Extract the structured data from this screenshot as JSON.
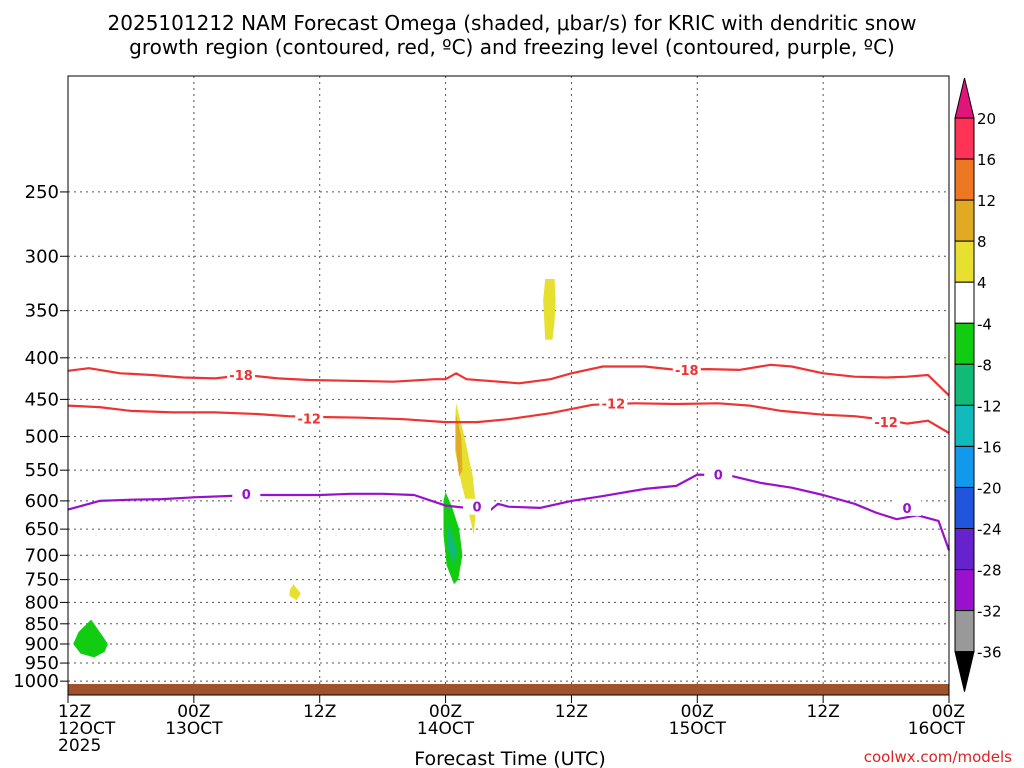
{
  "chart_data": {
    "type": "heatmap",
    "title_lines": [
      "2025101212 NAM Forecast Omega (shaded, μbar/s) for KRIC with dendritic snow",
      "growth region (contoured, red, ºC) and freezing level (contoured, purple, ºC)"
    ],
    "xlabel": "Forecast Time (UTC)",
    "ylabel": "",
    "credit": "coolwx.com/models",
    "y_scale": "log",
    "ylim": [
      1040,
      180
    ],
    "y_ticks": [
      250,
      300,
      350,
      400,
      450,
      500,
      550,
      600,
      650,
      700,
      750,
      800,
      850,
      900,
      950,
      1000
    ],
    "x_range_hours": [
      0,
      84
    ],
    "x_ticks": [
      {
        "h": 0,
        "line1": "12Z",
        "line2": "12OCT",
        "line3": "2025"
      },
      {
        "h": 12,
        "line1": "00Z",
        "line2": "13OCT",
        "line3": ""
      },
      {
        "h": 24,
        "line1": "12Z",
        "line2": "",
        "line3": ""
      },
      {
        "h": 36,
        "line1": "00Z",
        "line2": "14OCT",
        "line3": ""
      },
      {
        "h": 48,
        "line1": "12Z",
        "line2": "",
        "line3": ""
      },
      {
        "h": 60,
        "line1": "00Z",
        "line2": "15OCT",
        "line3": ""
      },
      {
        "h": 72,
        "line1": "12Z",
        "line2": "",
        "line3": ""
      },
      {
        "h": 84,
        "line1": "00Z",
        "line2": "16OCT",
        "line3": ""
      }
    ],
    "colorbar": {
      "labels": [
        "20",
        "16",
        "12",
        "8",
        "4",
        "-4",
        "-8",
        "-12",
        "-16",
        "-20",
        "-24",
        "-28",
        "-32",
        "-36"
      ],
      "colors": [
        "#ff3355",
        "#ee7722",
        "#e0aa22",
        "#e8e030",
        "#ffffff",
        "#11cc11",
        "#11bb77",
        "#11bbbb",
        "#1199ee",
        "#2255dd",
        "#6622cc",
        "#9911cc",
        "#999999"
      ],
      "top_arrow_color": "#e0157a",
      "bottom_arrow_color": "#000000"
    },
    "ground_color": "#a0522d",
    "contours": [
      {
        "level": "-18",
        "color": "#ee3333",
        "points": [
          [
            0,
            415
          ],
          [
            2,
            412
          ],
          [
            5,
            418
          ],
          [
            8,
            420
          ],
          [
            11,
            423
          ],
          [
            14,
            424
          ],
          [
            17,
            420
          ],
          [
            20,
            424
          ],
          [
            23,
            426
          ],
          [
            27,
            427
          ],
          [
            31,
            428
          ],
          [
            35,
            425
          ],
          [
            36,
            425
          ],
          [
            37,
            418
          ],
          [
            38,
            425
          ],
          [
            40,
            427
          ],
          [
            43,
            430
          ],
          [
            46,
            425
          ],
          [
            48,
            418
          ],
          [
            51,
            410
          ],
          [
            55,
            410
          ],
          [
            58,
            414
          ],
          [
            61,
            413
          ],
          [
            64,
            414
          ],
          [
            66,
            410
          ],
          [
            67,
            408
          ],
          [
            69,
            410
          ],
          [
            72,
            418
          ],
          [
            75,
            422
          ],
          [
            78,
            423
          ],
          [
            80,
            422
          ],
          [
            82,
            420
          ],
          [
            84,
            445
          ]
        ],
        "labels": [
          [
            16.5,
            420
          ]
        ]
      },
      {
        "level": "-18b",
        "color": "#ee3333",
        "points": [],
        "labels": [
          [
            59,
            414
          ]
        ]
      },
      {
        "level": "-12",
        "color": "#ee3333",
        "points": [
          [
            0,
            458
          ],
          [
            3,
            460
          ],
          [
            6,
            465
          ],
          [
            10,
            467
          ],
          [
            14,
            467
          ],
          [
            18,
            469
          ],
          [
            21,
            472
          ],
          [
            24,
            473
          ],
          [
            28,
            474
          ],
          [
            32,
            476
          ],
          [
            36,
            480
          ],
          [
            39,
            480
          ],
          [
            42,
            476
          ],
          [
            46,
            468
          ],
          [
            50,
            457
          ],
          [
            54,
            455
          ],
          [
            58,
            456
          ],
          [
            62,
            455
          ],
          [
            65,
            458
          ],
          [
            68,
            465
          ],
          [
            72,
            470
          ],
          [
            75,
            472
          ],
          [
            78,
            477
          ],
          [
            80,
            482
          ],
          [
            82,
            478
          ],
          [
            84,
            495
          ]
        ],
        "labels": [
          [
            23,
            475
          ],
          [
            52,
            455
          ],
          [
            78,
            480
          ]
        ]
      },
      {
        "level": "0",
        "color": "#9911cc",
        "points": [
          [
            0,
            615
          ],
          [
            3,
            600
          ],
          [
            6,
            598
          ],
          [
            9,
            597
          ],
          [
            12,
            594
          ],
          [
            15,
            592
          ],
          [
            18,
            590
          ],
          [
            21,
            590
          ],
          [
            24,
            590
          ],
          [
            27,
            588
          ],
          [
            30,
            588
          ],
          [
            33,
            590
          ],
          [
            36,
            608
          ],
          [
            38,
            612
          ],
          [
            40,
            620
          ],
          [
            41,
            605
          ],
          [
            42,
            610
          ],
          [
            45,
            612
          ],
          [
            48,
            600
          ],
          [
            51,
            592
          ],
          [
            55,
            580
          ],
          [
            58,
            575
          ],
          [
            60,
            557
          ],
          [
            63,
            558
          ],
          [
            66,
            570
          ],
          [
            69,
            578
          ],
          [
            72,
            590
          ],
          [
            75,
            605
          ],
          [
            77,
            620
          ],
          [
            79,
            632
          ],
          [
            81,
            625
          ],
          [
            83,
            635
          ],
          [
            84,
            690
          ]
        ],
        "labels": [
          [
            17,
            588
          ],
          [
            39,
            610
          ],
          [
            62,
            557
          ],
          [
            80,
            612
          ]
        ]
      }
    ],
    "shaded_regions": [
      {
        "color": "#e8e030",
        "points": [
          [
            45.5,
            320
          ],
          [
            46.4,
            320
          ],
          [
            46.5,
            340
          ],
          [
            46.4,
            360
          ],
          [
            46.2,
            380
          ],
          [
            45.5,
            380
          ],
          [
            45.4,
            360
          ],
          [
            45.3,
            340
          ]
        ]
      },
      {
        "color": "#e8e030",
        "points": [
          [
            37.0,
            455
          ],
          [
            37.8,
            500
          ],
          [
            38.6,
            560
          ],
          [
            38.9,
            610
          ],
          [
            38.7,
            660
          ],
          [
            38.2,
            620
          ],
          [
            37.5,
            570
          ],
          [
            36.9,
            520
          ],
          [
            36.9,
            480
          ]
        ]
      },
      {
        "color": "#e0aa22",
        "points": [
          [
            37.0,
            470
          ],
          [
            37.5,
            500
          ],
          [
            37.6,
            550
          ],
          [
            37.3,
            560
          ],
          [
            37.0,
            520
          ]
        ]
      },
      {
        "color": "#11cc11",
        "points": [
          [
            36.0,
            585
          ],
          [
            36.6,
            610
          ],
          [
            37.3,
            650
          ],
          [
            37.6,
            700
          ],
          [
            37.2,
            750
          ],
          [
            36.8,
            760
          ],
          [
            36.1,
            720
          ],
          [
            35.8,
            660
          ],
          [
            35.8,
            600
          ]
        ]
      },
      {
        "color": "#11bb77",
        "points": [
          [
            36.3,
            640
          ],
          [
            37.1,
            690
          ],
          [
            36.8,
            720
          ],
          [
            36.1,
            680
          ]
        ]
      },
      {
        "color": "#e8e030",
        "points": [
          [
            21.5,
            760
          ],
          [
            22.2,
            780
          ],
          [
            21.8,
            795
          ],
          [
            21.1,
            785
          ],
          [
            21.2,
            770
          ]
        ]
      },
      {
        "color": "#11cc11",
        "points": [
          [
            2.2,
            840
          ],
          [
            3.3,
            880
          ],
          [
            3.8,
            900
          ],
          [
            3.5,
            920
          ],
          [
            2.5,
            935
          ],
          [
            1.2,
            925
          ],
          [
            0.5,
            900
          ],
          [
            1.0,
            870
          ]
        ]
      }
    ]
  }
}
